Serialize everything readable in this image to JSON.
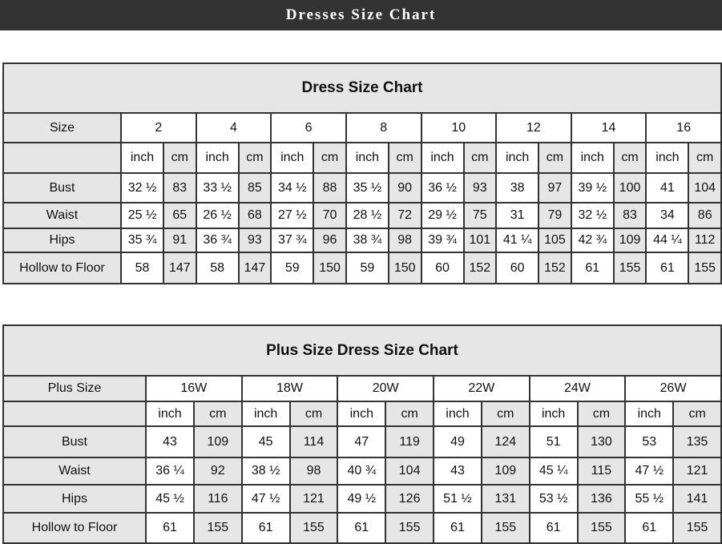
{
  "banner": {
    "title": "Dresses Size Chart"
  },
  "dress_chart": {
    "title": "Dress Size Chart",
    "size_label": "Size",
    "sizes": [
      "2",
      "4",
      "6",
      "8",
      "10",
      "12",
      "14",
      "16"
    ],
    "units": [
      "inch",
      "cm"
    ],
    "rows": [
      {
        "label": "Bust",
        "values": [
          "32 ½",
          "83",
          "33 ½",
          "85",
          "34 ½",
          "88",
          "35 ½",
          "90",
          "36 ½",
          "93",
          "38",
          "97",
          "39 ½",
          "100",
          "41",
          "104"
        ]
      },
      {
        "label": "Waist",
        "values": [
          "25 ½",
          "65",
          "26 ½",
          "68",
          "27 ½",
          "70",
          "28 ½",
          "72",
          "29 ½",
          "75",
          "31",
          "79",
          "32 ½",
          "83",
          "34",
          "86"
        ]
      },
      {
        "label": "Hips",
        "values": [
          "35 ¾",
          "91",
          "36 ¾",
          "93",
          "37 ¾",
          "96",
          "38 ¾",
          "98",
          "39 ¾",
          "101",
          "41 ¼",
          "105",
          "42 ¾",
          "109",
          "44 ¼",
          "112"
        ]
      },
      {
        "label": "Hollow to Floor",
        "values": [
          "58",
          "147",
          "58",
          "147",
          "59",
          "150",
          "59",
          "150",
          "60",
          "152",
          "60",
          "152",
          "61",
          "155",
          "61",
          "155"
        ]
      }
    ]
  },
  "plus_chart": {
    "title": "Plus Size Dress Size Chart",
    "size_label": "Plus Size",
    "sizes": [
      "16W",
      "18W",
      "20W",
      "22W",
      "24W",
      "26W"
    ],
    "units": [
      "inch",
      "cm"
    ],
    "rows": [
      {
        "label": "Bust",
        "values": [
          "43",
          "109",
          "45",
          "114",
          "47",
          "119",
          "49",
          "124",
          "51",
          "130",
          "53",
          "135"
        ]
      },
      {
        "label": "Waist",
        "values": [
          "36 ¼",
          "92",
          "38 ½",
          "98",
          "40 ¾",
          "104",
          "43",
          "109",
          "45 ¼",
          "115",
          "47 ½",
          "121"
        ]
      },
      {
        "label": "Hips",
        "values": [
          "45 ½",
          "116",
          "47 ½",
          "121",
          "49 ½",
          "126",
          "51 ½",
          "131",
          "53 ½",
          "136",
          "55 ½",
          "141"
        ]
      },
      {
        "label": "Hollow to Floor",
        "values": [
          "61",
          "155",
          "61",
          "155",
          "61",
          "155",
          "61",
          "155",
          "61",
          "155",
          "61",
          "155"
        ]
      }
    ]
  }
}
